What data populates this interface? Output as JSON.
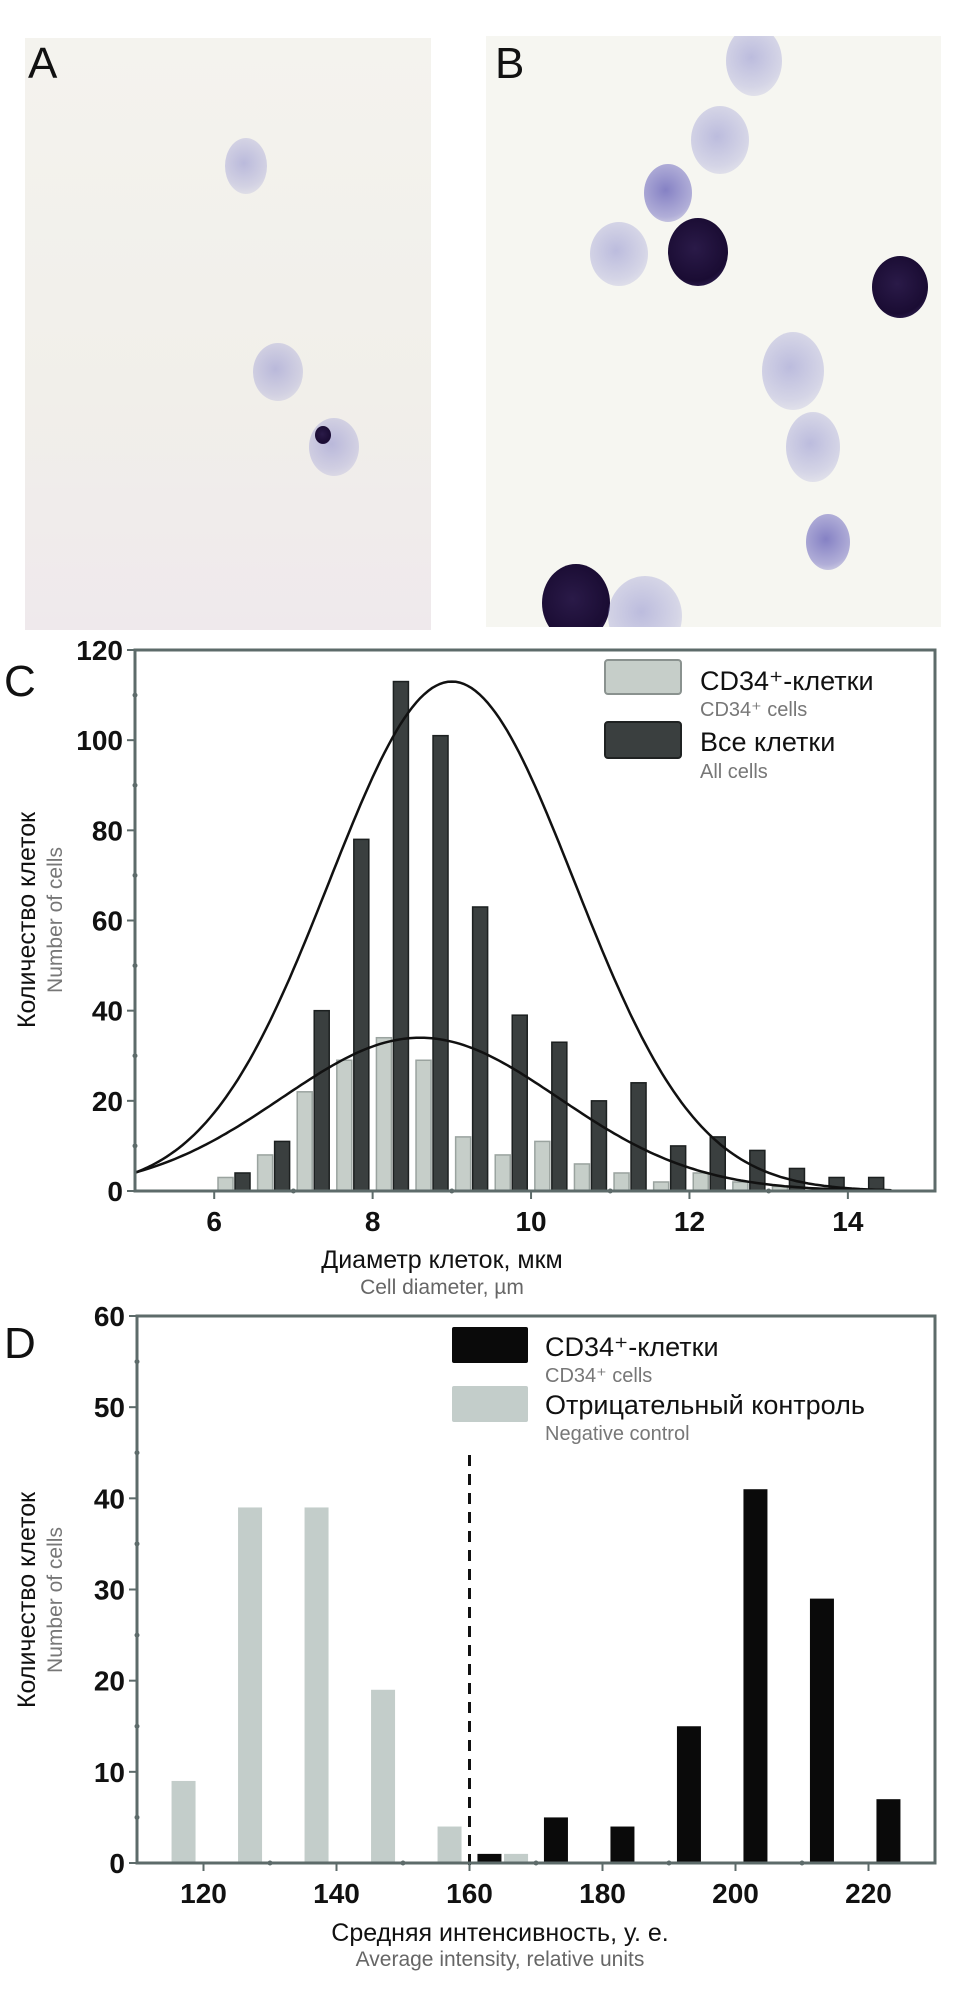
{
  "figure": {
    "panels": [
      {
        "letter": "A",
        "description": "micrograph: sparse pale-stained cells"
      },
      {
        "letter": "B",
        "description": "micrograph: pale cells and darkly stained CD34+ cells"
      },
      {
        "letter": "C"
      },
      {
        "letter": "D"
      }
    ]
  },
  "chart_data": [
    {
      "panel": "C",
      "type": "bar",
      "title": "",
      "xlabel": "Диаметр клеток, мкм",
      "xlabel_en": "Cell diameter, µm",
      "ylabel": "Количество клеток",
      "ylabel_en": "Number of cells",
      "xlim": [
        5,
        15.1
      ],
      "ylim": [
        0,
        120
      ],
      "xticks": [
        6,
        8,
        10,
        12,
        14
      ],
      "yticks": [
        0,
        20,
        40,
        60,
        80,
        100,
        120
      ],
      "x": [
        6.25,
        6.75,
        7.25,
        7.75,
        8.25,
        8.75,
        9.25,
        9.75,
        10.25,
        10.75,
        11.25,
        11.75,
        12.25,
        12.75,
        13.25,
        13.75,
        14.25
      ],
      "series": [
        {
          "name": "CD34⁺-клетки",
          "name_en": "CD34⁺ cells",
          "color": "#c6cec9",
          "values": [
            3,
            8,
            22,
            29,
            34,
            29,
            12,
            8,
            11,
            6,
            4,
            2,
            4,
            2,
            1,
            0,
            0
          ]
        },
        {
          "name": "Все клетки",
          "name_en": "All cells",
          "color": "#3a3f3f",
          "values": [
            4,
            11,
            40,
            78,
            113,
            101,
            63,
            39,
            33,
            20,
            24,
            10,
            12,
            9,
            5,
            3,
            3
          ]
        }
      ],
      "fits": [
        {
          "name": "Gaussian fit (All cells)",
          "type": "gaussian",
          "amplitude": 113,
          "mean": 9.0,
          "sd": 1.55
        },
        {
          "name": "Gaussian fit (CD34⁺ cells)",
          "type": "gaussian",
          "amplitude": 34,
          "mean": 8.6,
          "sd": 1.75
        }
      ],
      "legend": "top-right",
      "grid": false
    },
    {
      "panel": "D",
      "type": "bar",
      "title": "",
      "xlabel": "Средняя интенсивность, у. е.",
      "xlabel_en": "Average intensity, relative units",
      "ylabel": "Количество клеток",
      "ylabel_en": "Number of cells",
      "xlim": [
        110,
        230
      ],
      "ylim": [
        0,
        60
      ],
      "xticks": [
        120,
        140,
        160,
        180,
        200,
        220
      ],
      "yticks": [
        0,
        10,
        20,
        30,
        40,
        50,
        60
      ],
      "threshold": 160,
      "series": [
        {
          "name": "CD34⁺-клетки",
          "name_en": "CD34⁺ cells",
          "color": "#0a0a0a",
          "x": [
            163,
            173,
            183,
            193,
            203,
            213,
            223
          ],
          "values": [
            1,
            5,
            4,
            15,
            41,
            29,
            7
          ]
        },
        {
          "name": "Отрицательный контроль",
          "name_en": "Negative control",
          "color": "#c3cdca",
          "x": [
            117,
            127,
            137,
            147,
            157,
            167
          ],
          "values": [
            9,
            39,
            39,
            19,
            4,
            1
          ]
        }
      ],
      "legend": "top-right",
      "grid": false
    }
  ]
}
